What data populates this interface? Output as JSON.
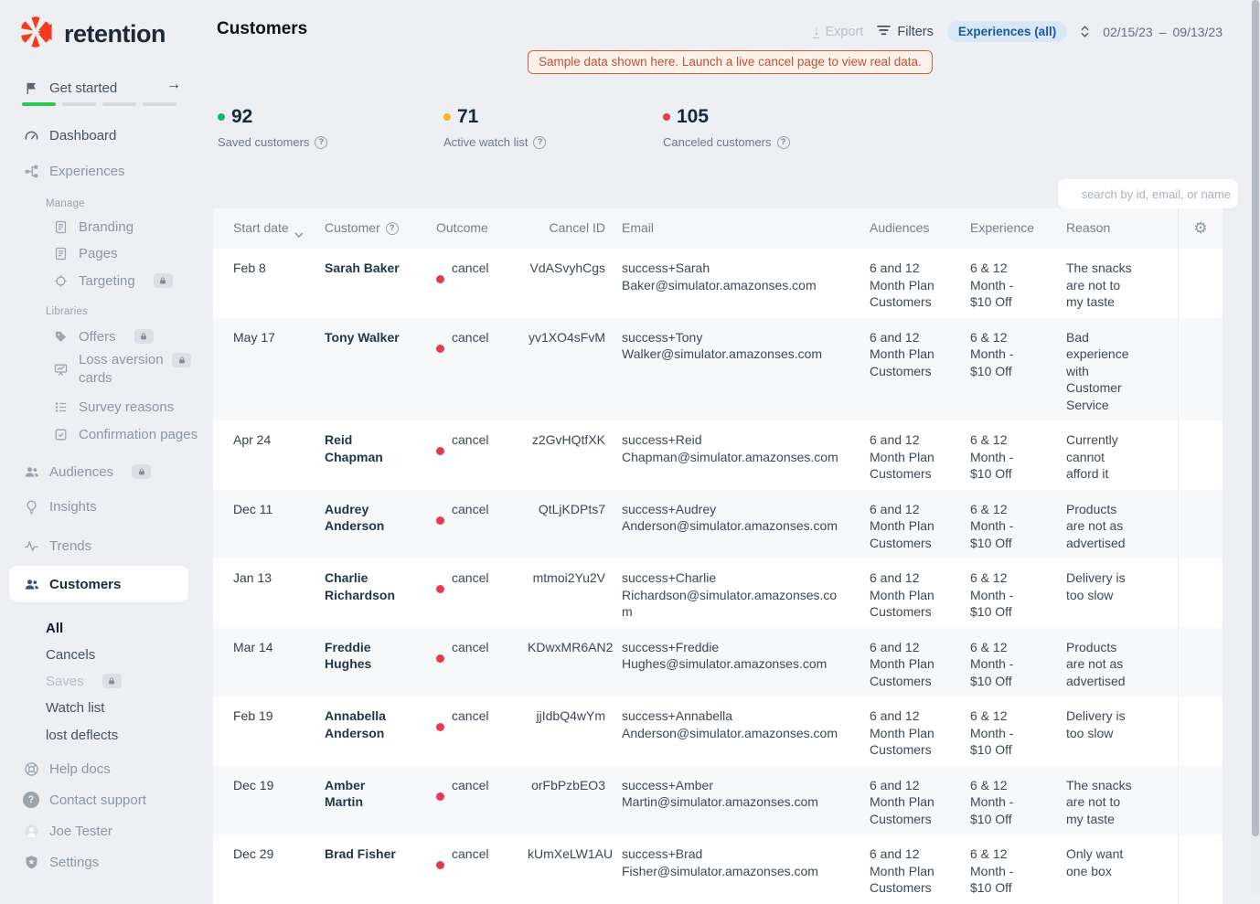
{
  "brand": {
    "name": "retention",
    "accent": "#f5391d"
  },
  "page": {
    "title": "Customers"
  },
  "topbar": {
    "export": "Export",
    "filters": "Filters",
    "experiences_filter": "Experiences (all)",
    "date_start": "02/15/23",
    "date_separator": "–",
    "date_end": "09/13/23"
  },
  "banner": {
    "text": "Sample data shown here. Launch a live cancel page to view real data."
  },
  "stats": [
    {
      "value": "92",
      "label": "Saved customers",
      "dot_color": "#12b76a"
    },
    {
      "value": "71",
      "label": "Active watch list",
      "dot_color": "#f7b723"
    },
    {
      "value": "105",
      "label": "Canceled customers",
      "dot_color": "#ea3a50"
    }
  ],
  "sidebar": {
    "get_started": "Get started",
    "dashboard": "Dashboard",
    "experiences": "Experiences",
    "manage_label": "Manage",
    "branding": "Branding",
    "pages": "Pages",
    "targeting": "Targeting",
    "libraries_label": "Libraries",
    "offers": "Offers",
    "loss_aversion": "Loss aversion cards",
    "survey_reasons": "Survey reasons",
    "confirmation_pages": "Confirmation pages",
    "audiences": "Audiences",
    "insights": "Insights",
    "trends": "Trends",
    "customers": "Customers",
    "sub_all": "All",
    "sub_cancels": "Cancels",
    "sub_saves": "Saves",
    "sub_watch_list": "Watch list",
    "sub_lost_deflects": "lost deflects",
    "help_docs": "Help docs",
    "contact_support": "Contact support",
    "user_name": "Joe Tester",
    "settings": "Settings"
  },
  "search": {
    "placeholder": "search by id, email, or name"
  },
  "icons": {
    "gear": "⚙",
    "arrow_right": "→",
    "download": "↓",
    "help": "?"
  },
  "table": {
    "headers": {
      "start_date": "Start date",
      "customer": "Customer",
      "outcome": "Outcome",
      "cancel_id": "Cancel ID",
      "email": "Email",
      "audiences": "Audiences",
      "experience": "Experience",
      "reason": "Reason"
    },
    "rows": [
      {
        "start_date": "Feb 8",
        "customer": "Sarah Baker",
        "outcome": "cancel",
        "cancel_id": "VdASvyhCgs",
        "email": "success+Sarah Baker@simulator.amazonses.com",
        "audiences": "6 and 12 Month Plan Customers",
        "experience": "6 & 12 Month - $10 Off",
        "reason": "The snacks are not to my taste"
      },
      {
        "start_date": "May 17",
        "customer": "Tony Walker",
        "outcome": "cancel",
        "cancel_id": "yv1XO4sFvM",
        "email": "success+Tony Walker@simulator.amazonses.com",
        "audiences": "6 and 12 Month Plan Customers",
        "experience": "6 & 12 Month - $10 Off",
        "reason": "Bad experience with Customer Service"
      },
      {
        "start_date": "Apr 24",
        "customer": "Reid Chapman",
        "outcome": "cancel",
        "cancel_id": "z2GvHQtfXK",
        "email": "success+Reid Chapman@simulator.amazonses.com",
        "audiences": "6 and 12 Month Plan Customers",
        "experience": "6 & 12 Month - $10 Off",
        "reason": "Currently cannot afford it"
      },
      {
        "start_date": "Dec 11",
        "customer": "Audrey Anderson",
        "outcome": "cancel",
        "cancel_id": "QtLjKDPts7",
        "email": "success+Audrey Anderson@simulator.amazonses.com",
        "audiences": "6 and 12 Month Plan Customers",
        "experience": "6 & 12 Month - $10 Off",
        "reason": "Products are not as advertised"
      },
      {
        "start_date": "Jan 13",
        "customer": "Charlie Richardson",
        "outcome": "cancel",
        "cancel_id": "mtmoi2Yu2V",
        "email": "success+Charlie Richardson@simulator.amazonses.com",
        "audiences": "6 and 12 Month Plan Customers",
        "experience": "6 & 12 Month - $10 Off",
        "reason": "Delivery is too slow"
      },
      {
        "start_date": "Mar 14",
        "customer": "Freddie Hughes",
        "outcome": "cancel",
        "cancel_id": "KDwxMR6AN2",
        "email": "success+Freddie Hughes@simulator.amazonses.com",
        "audiences": "6 and 12 Month Plan Customers",
        "experience": "6 & 12 Month - $10 Off",
        "reason": "Products are not as advertised"
      },
      {
        "start_date": "Feb 19",
        "customer": "Annabella Anderson",
        "outcome": "cancel",
        "cancel_id": "jjIdbQ4wYm",
        "email": "success+Annabella Anderson@simulator.amazonses.com",
        "audiences": "6 and 12 Month Plan Customers",
        "experience": "6 & 12 Month - $10 Off",
        "reason": "Delivery is too slow"
      },
      {
        "start_date": "Dec 19",
        "customer": "Amber Martin",
        "outcome": "cancel",
        "cancel_id": "orFbPzbEO3",
        "email": "success+Amber Martin@simulator.amazonses.com",
        "audiences": "6 and 12 Month Plan Customers",
        "experience": "6 & 12 Month - $10 Off",
        "reason": "The snacks are not to my taste"
      },
      {
        "start_date": "Dec 29",
        "customer": "Brad Fisher",
        "outcome": "cancel",
        "cancel_id": "kUmXeLW1AU",
        "email": "success+Brad Fisher@simulator.amazonses.com",
        "audiences": "6 and 12 Month Plan Customers",
        "experience": "6 & 12 Month - $10 Off",
        "reason": "Only want one box"
      }
    ]
  }
}
